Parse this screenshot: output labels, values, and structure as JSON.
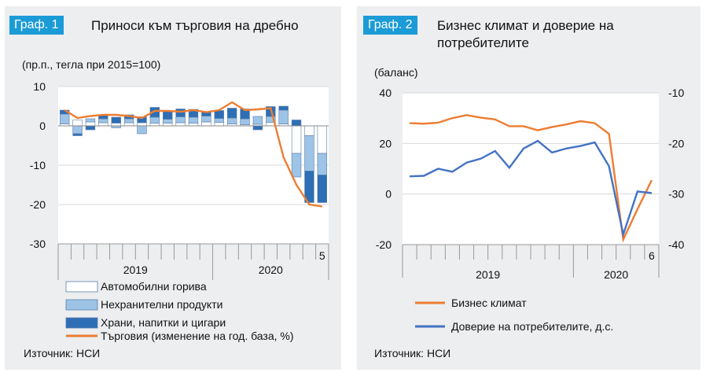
{
  "chart_data": [
    {
      "id": "graph1",
      "type": "bar",
      "badge": "Граф. 1",
      "title": "Приноси към търговия на дребно",
      "unit_label": "(пр.п., тегла при 2015=100)",
      "yticks": [
        10,
        0,
        -10,
        -20,
        -30
      ],
      "ylim": [
        -30,
        10
      ],
      "year_labels": [
        "2019",
        "2020"
      ],
      "last_month_label": "5",
      "series": [
        {
          "name": "Автомобилни горива",
          "color": "#ffffff",
          "values": [
            0.5,
            1.5,
            1.0,
            0.8,
            0.7,
            0.8,
            0.8,
            0.7,
            0.7,
            0.8,
            0.7,
            1.0,
            0.9,
            0.5,
            0.3,
            0.4,
            0.9,
            0.5,
            -7.0,
            -2.5,
            -7.0
          ]
        },
        {
          "name": "Нехранителни продукти",
          "color": "#9dc3e6",
          "values": [
            2.5,
            -2.0,
            0.8,
            1.0,
            -0.5,
            1.0,
            -2.0,
            1.5,
            1.0,
            1.5,
            1.5,
            1.5,
            1.0,
            1.5,
            1.5,
            2.0,
            1.5,
            3.5,
            -6.0,
            -9.0,
            -5.5
          ]
        },
        {
          "name": "Храни, напитки и цигари",
          "color": "#2e6eb5",
          "values": [
            1.0,
            -0.5,
            -1.0,
            1.0,
            1.5,
            1.0,
            1.5,
            2.5,
            2.0,
            2.0,
            2.0,
            1.0,
            2.0,
            2.5,
            2.5,
            -1.0,
            2.5,
            1.0,
            1.5,
            -8.0,
            -7.0
          ]
        },
        {
          "name": "Търговия (изменение на год. база, %)",
          "color": "#ed7d31",
          "values": [
            4.0,
            2.0,
            2.5,
            2.8,
            2.8,
            2.5,
            2.0,
            3.8,
            3.8,
            3.6,
            4.0,
            3.5,
            4.0,
            6.0,
            4.0,
            4.2,
            4.5,
            -8.0,
            -15.0,
            -20.0,
            -20.5
          ]
        }
      ],
      "source": "Източник: НСИ"
    },
    {
      "id": "graph2",
      "type": "line",
      "badge": "Граф. 2",
      "title_lines": [
        "Бизнес климат и доверие на",
        "потребителите"
      ],
      "unit_label": "(баланс)",
      "yticks_left": [
        40,
        20,
        0,
        -20
      ],
      "ylim_left": [
        -20,
        40
      ],
      "yticks_right": [
        -10,
        -20,
        -30,
        -40
      ],
      "ylim_right": [
        -40,
        -10
      ],
      "year_labels": [
        "2019",
        "2020"
      ],
      "last_month_label": "6",
      "series": [
        {
          "name": "Бизнес климат",
          "axis": "left",
          "color": "#ed7d31",
          "values": [
            28.0,
            27.8,
            28.2,
            30.0,
            31.2,
            30.2,
            29.5,
            26.8,
            26.8,
            25.2,
            26.5,
            27.5,
            28.8,
            28.0,
            23.8,
            -18.0,
            -6.0,
            5.5
          ]
        },
        {
          "name": "Доверие на потребителите, д.с.",
          "axis": "right",
          "color": "#4472c4",
          "values": [
            -26.5,
            -26.4,
            -25.0,
            -25.6,
            -23.8,
            -23.0,
            -21.5,
            -24.8,
            -21.0,
            -19.5,
            -21.8,
            -21.0,
            -20.5,
            -19.8,
            -24.5,
            -38.0,
            -29.5,
            -29.8
          ]
        }
      ],
      "source": "Източник: НСИ"
    }
  ]
}
